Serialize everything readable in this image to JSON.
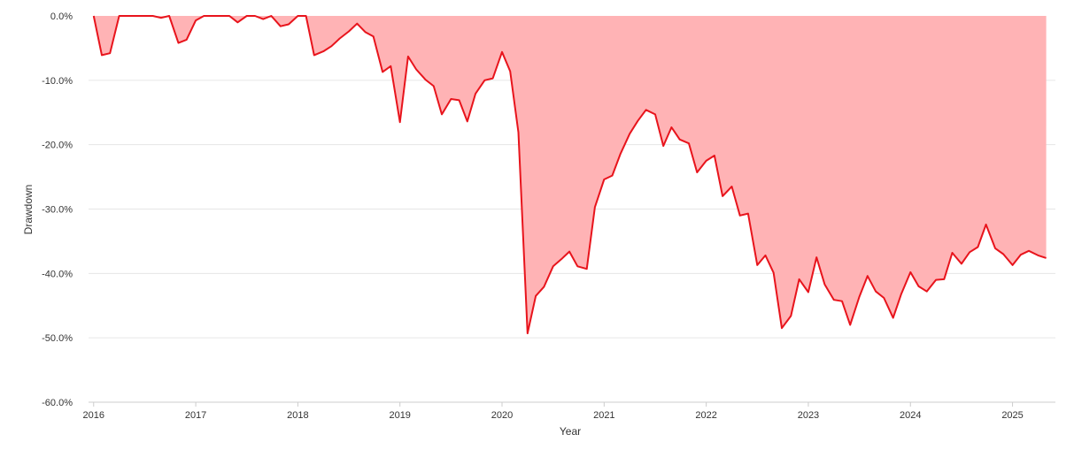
{
  "chart_data": {
    "type": "area",
    "title": "",
    "xlabel": "Year",
    "ylabel": "Drawdown",
    "xlim": [
      2015.95,
      2025.42
    ],
    "ylim": [
      -60,
      0
    ],
    "x_ticks": [
      {
        "value": 2016,
        "label": "2016"
      },
      {
        "value": 2017,
        "label": "2017"
      },
      {
        "value": 2018,
        "label": "2018"
      },
      {
        "value": 2019,
        "label": "2019"
      },
      {
        "value": 2020,
        "label": "2020"
      },
      {
        "value": 2021,
        "label": "2021"
      },
      {
        "value": 2022,
        "label": "2022"
      },
      {
        "value": 2023,
        "label": "2023"
      },
      {
        "value": 2024,
        "label": "2024"
      },
      {
        "value": 2025,
        "label": "2025"
      }
    ],
    "y_ticks": [
      {
        "value": 0,
        "label": "0.0%"
      },
      {
        "value": -10,
        "label": "-10.0%"
      },
      {
        "value": -20,
        "label": "-20.0%"
      },
      {
        "value": -30,
        "label": "-30.0%"
      },
      {
        "value": -40,
        "label": "-40.0%"
      },
      {
        "value": -50,
        "label": "-50.0%"
      },
      {
        "value": -60,
        "label": "-60.0%"
      }
    ],
    "grid": true,
    "legend": "none",
    "colors": {
      "line": "#e8141c",
      "fill": "#ffb3b5",
      "grid": "#e6e6e6",
      "axis": "#cccccc"
    },
    "series": [
      {
        "x": [
          2016.0,
          2016.08,
          2016.16,
          2016.25,
          2016.33,
          2016.41,
          2016.5,
          2016.58,
          2016.66,
          2016.74,
          2016.83,
          2016.91,
          2017.0,
          2017.08,
          2017.16,
          2017.25,
          2017.33,
          2017.41,
          2017.5,
          2017.58,
          2017.66,
          2017.74,
          2017.83,
          2017.91,
          2018.0,
          2018.08,
          2018.16,
          2018.25,
          2018.33,
          2018.41,
          2018.5,
          2018.58,
          2018.66,
          2018.74,
          2018.83,
          2018.91,
          2019.0,
          2019.08,
          2019.16,
          2019.25,
          2019.33,
          2019.41,
          2019.5,
          2019.58,
          2019.66,
          2019.74,
          2019.83,
          2019.91,
          2020.0,
          2020.08,
          2020.16,
          2020.25,
          2020.33,
          2020.41,
          2020.5,
          2020.58,
          2020.66,
          2020.74,
          2020.83,
          2020.91,
          2021.0,
          2021.08,
          2021.16,
          2021.25,
          2021.33,
          2021.41,
          2021.5,
          2021.58,
          2021.66,
          2021.74,
          2021.83,
          2021.91,
          2022.0,
          2022.08,
          2022.16,
          2022.25,
          2022.33,
          2022.41,
          2022.5,
          2022.58,
          2022.66,
          2022.74,
          2022.83,
          2022.91,
          2023.0,
          2023.08,
          2023.16,
          2023.25,
          2023.33,
          2023.41,
          2023.5,
          2023.58,
          2023.66,
          2023.74,
          2023.83,
          2023.91,
          2024.0,
          2024.08,
          2024.16,
          2024.25,
          2024.33,
          2024.41,
          2024.5,
          2024.58,
          2024.66,
          2024.74,
          2024.83,
          2024.91,
          2025.0,
          2025.08,
          2025.16,
          2025.25,
          2025.33
        ],
        "values": [
          0.0,
          -6.1,
          -5.8,
          0.0,
          0.0,
          0.0,
          0.0,
          0.0,
          -0.3,
          0.0,
          -4.2,
          -3.7,
          -0.7,
          0.0,
          0.0,
          0.0,
          0.0,
          -1.0,
          0.0,
          0.0,
          -0.5,
          0.0,
          -1.6,
          -1.3,
          0.0,
          0.0,
          -6.1,
          -5.5,
          -4.7,
          -3.5,
          -2.4,
          -1.2,
          -2.5,
          -3.2,
          -8.7,
          -7.8,
          -16.5,
          -6.3,
          -8.3,
          -9.9,
          -10.9,
          -15.3,
          -12.9,
          -13.1,
          -16.4,
          -12.1,
          -10.0,
          -9.7,
          -5.6,
          -8.6,
          -18.1,
          -49.3,
          -43.5,
          -42.1,
          -38.9,
          -37.8,
          -36.6,
          -38.9,
          -39.3,
          -29.7,
          -25.4,
          -24.8,
          -21.4,
          -18.3,
          -16.3,
          -14.6,
          -15.3,
          -20.2,
          -17.3,
          -19.2,
          -19.8,
          -24.3,
          -22.5,
          -21.7,
          -28.0,
          -26.5,
          -31.0,
          -30.7,
          -38.7,
          -37.2,
          -39.9,
          -48.5,
          -46.6,
          -40.9,
          -42.9,
          -37.5,
          -41.7,
          -44.1,
          -44.3,
          -48.0,
          -43.6,
          -40.4,
          -42.8,
          -43.8,
          -46.9,
          -43.2,
          -39.8,
          -42.0,
          -42.8,
          -41.0,
          -40.9,
          -36.8,
          -38.5,
          -36.7,
          -35.9,
          -32.4,
          -36.1,
          -37.0,
          -38.7,
          -37.1,
          -36.5,
          -37.2,
          -37.6
        ]
      }
    ]
  }
}
